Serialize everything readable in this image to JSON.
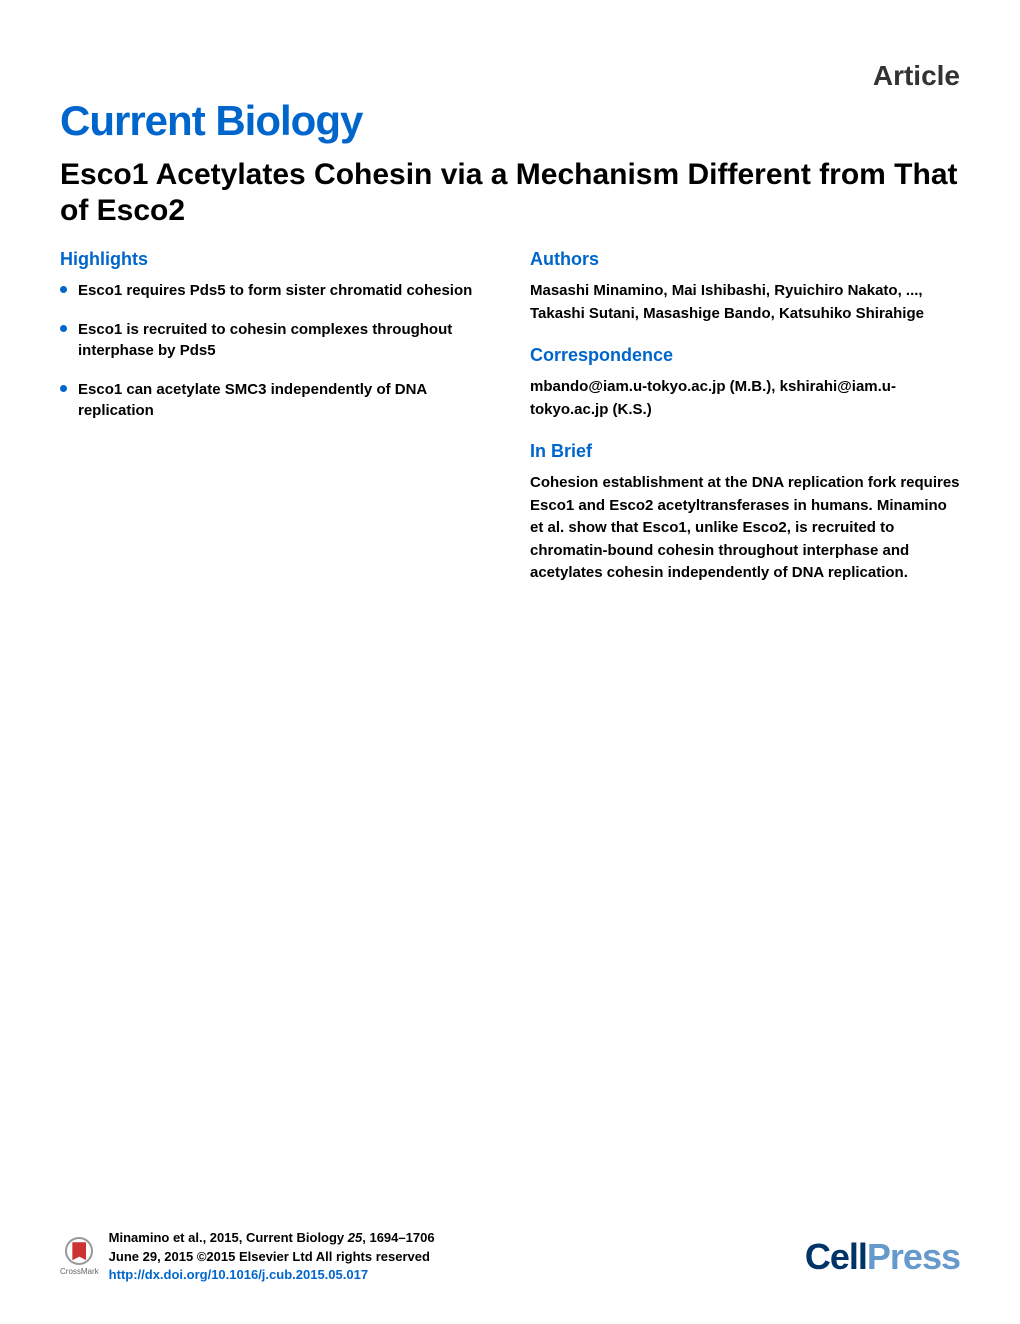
{
  "header": {
    "article_type": "Article",
    "journal_name": "Current Biology",
    "article_title": "Esco1 Acetylates Cohesin via a Mechanism Different from That of Esco2"
  },
  "highlights": {
    "heading": "Highlights",
    "items": [
      "Esco1 requires Pds5 to form sister chromatid cohesion",
      "Esco1 is recruited to cohesin complexes throughout interphase by Pds5",
      "Esco1 can acetylate SMC3 independently of DNA replication"
    ]
  },
  "authors": {
    "heading": "Authors",
    "text": "Masashi Minamino, Mai Ishibashi, Ryuichiro Nakato, ..., Takashi Sutani, Masashige Bando, Katsuhiko Shirahige"
  },
  "correspondence": {
    "heading": "Correspondence",
    "text": "mbando@iam.u-tokyo.ac.jp (M.B.), kshirahi@iam.u-tokyo.ac.jp (K.S.)"
  },
  "in_brief": {
    "heading": "In Brief",
    "text": "Cohesion establishment at the DNA replication fork requires Esco1 and Esco2 acetyltransferases in humans. Minamino et al. show that Esco1, unlike Esco2, is recruited to chromatin-bound cohesin throughout interphase and acetylates cohesin independently of DNA replication."
  },
  "footer": {
    "crossmark_label": "CrossMark",
    "citation_line1_prefix": "Minamino et al., 2015, Current Biology ",
    "citation_line1_volume": "25",
    "citation_line1_pages": ", 1694–1706",
    "citation_line2": "June 29, 2015 ©2015 Elsevier Ltd All rights reserved",
    "citation_link": "http://dx.doi.org/10.1016/j.cub.2015.05.017",
    "cellpress_cell": "Cell",
    "cellpress_press": "Press"
  },
  "colors": {
    "primary_blue": "#0066cc",
    "dark_navy": "#003366",
    "light_blue": "#6699cc",
    "text_black": "#000000",
    "background": "#ffffff"
  }
}
